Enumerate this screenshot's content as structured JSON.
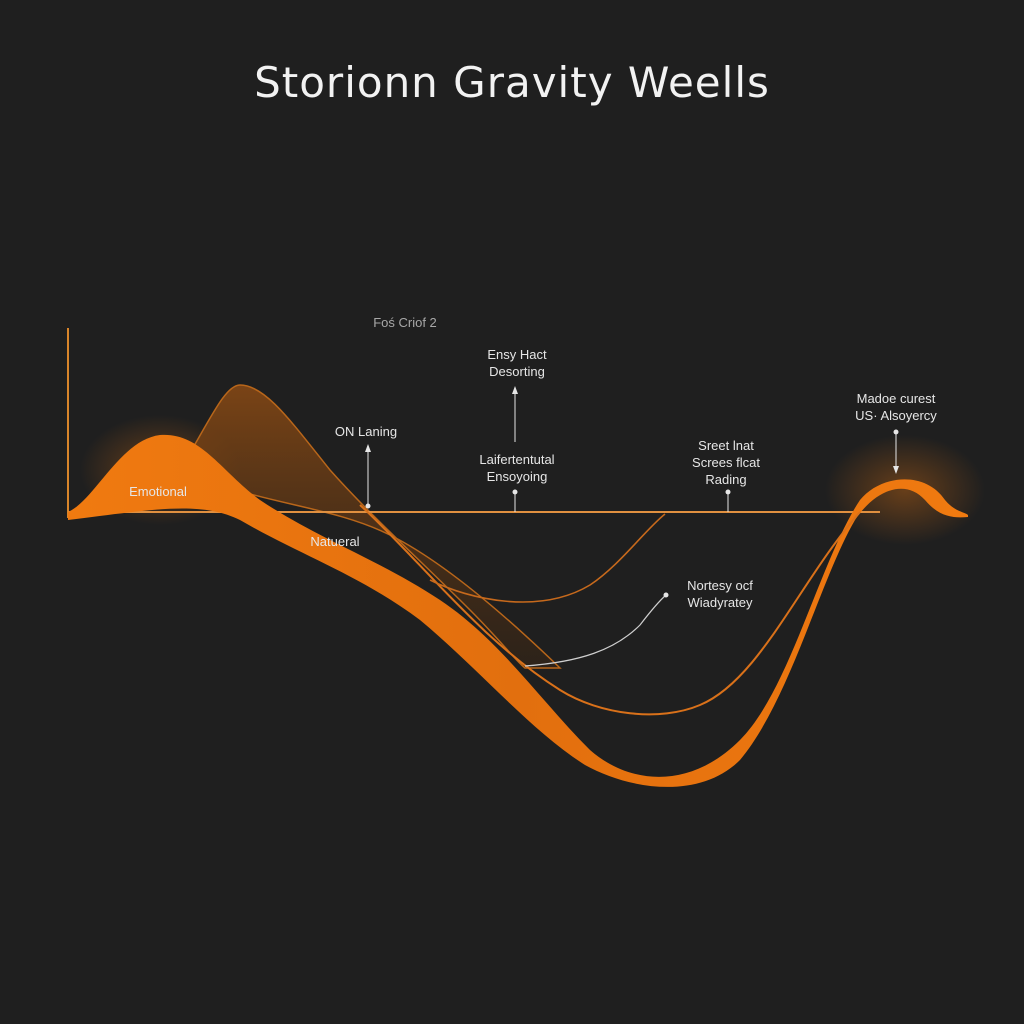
{
  "title": "Storionn Gravity Weells",
  "labels": {
    "top_note": "Foś Criof 2",
    "emotional": "Emotional",
    "natural": "Natueral",
    "on_laning": "ON Laning",
    "ensy_line1": "Ensy Hact",
    "ensy_line2": "Desorting",
    "lafer_line1": "Laifertentutal",
    "lafer_line2": "Ensoyoing",
    "sreet_line1": "Sreet lnat",
    "sreet_line2": "Screes flcat",
    "sreet_line3": "Rading",
    "madoe_line1": "Madoe curest",
    "madoe_line2": "US· Alsoyercy",
    "nortesy_line1": "Nortesy ocf",
    "nortesy_line2": "Wiadyratey"
  },
  "colors": {
    "background": "#1f1f1f",
    "accent": "#f07a10",
    "accent_dark": "#b85a0c",
    "text": "#e6e6e6"
  }
}
